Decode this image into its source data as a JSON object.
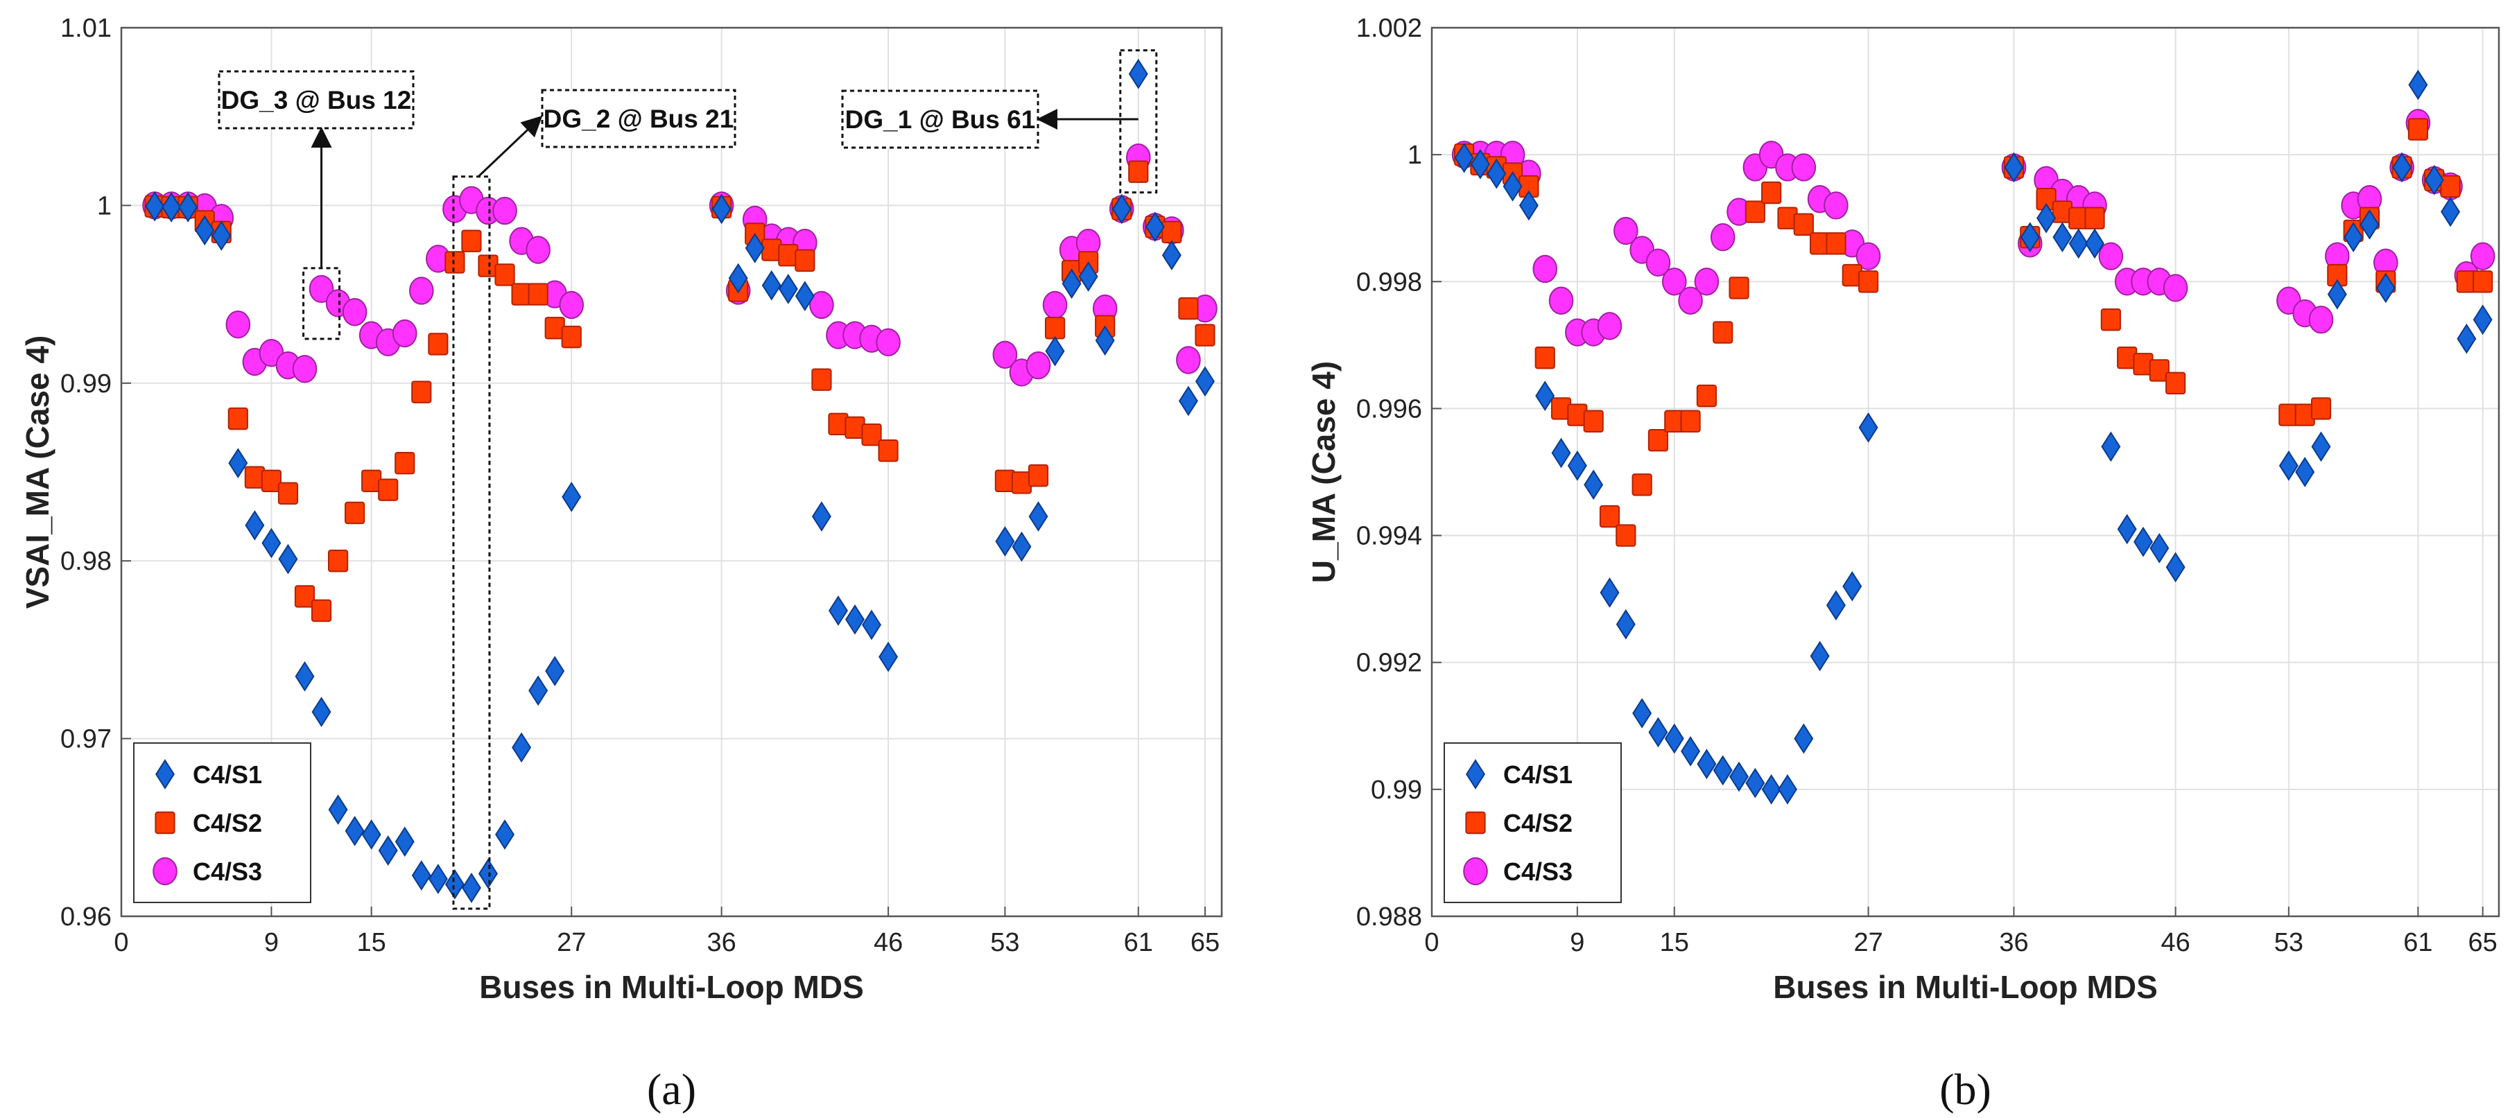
{
  "colors": {
    "S1": "#1565d8",
    "S1_edge": "#0b3a8c",
    "S2": "#ff3d00",
    "S2_edge": "#b32000",
    "S3": "#ff33ff",
    "S3_edge": "#a020a0",
    "grid": "#e0e0e0",
    "axis": "#555555"
  },
  "chart_data": [
    {
      "type": "scatter",
      "panel_label": "(a)",
      "xlabel": "Buses in Multi-Loop MDS",
      "ylabel": "VSAI_MA (Case 4)",
      "xlim": [
        0,
        66
      ],
      "ylim": [
        0.96,
        1.01
      ],
      "xticks": [
        0,
        9,
        15,
        27,
        36,
        46,
        53,
        61,
        65
      ],
      "yticks": [
        0.96,
        0.97,
        0.98,
        0.99,
        1,
        1.01
      ],
      "ytick_labels": [
        "0.96",
        "0.97",
        "0.98",
        "0.99",
        "1",
        "1.01"
      ],
      "legend": [
        "C4/S1",
        "C4/S2",
        "C4/S3"
      ],
      "legend_position": "bottom-left",
      "x": [
        2,
        3,
        4,
        5,
        6,
        7,
        8,
        9,
        10,
        11,
        12,
        13,
        14,
        15,
        16,
        17,
        18,
        19,
        20,
        21,
        22,
        23,
        24,
        25,
        26,
        27,
        36,
        37,
        38,
        39,
        40,
        41,
        42,
        43,
        44,
        45,
        46,
        53,
        54,
        55,
        56,
        57,
        58,
        59,
        60,
        61,
        62,
        63,
        64,
        65
      ],
      "series": [
        {
          "name": "C4/S1",
          "values": [
            0.99995,
            0.9999,
            0.9999,
            0.9986,
            0.9983,
            0.9855,
            0.982,
            0.981,
            0.9801,
            0.9735,
            0.9715,
            0.966,
            0.9648,
            0.9646,
            0.9637,
            0.9642,
            0.9623,
            0.9621,
            0.9618,
            0.9616,
            0.9624,
            0.9646,
            0.9695,
            0.9727,
            0.9738,
            0.9836,
            0.9998,
            0.9959,
            0.9976,
            0.9955,
            0.9953,
            0.9949,
            0.9825,
            0.9772,
            0.9767,
            0.9764,
            0.9746,
            0.9811,
            0.9808,
            0.9825,
            0.9918,
            0.9956,
            0.996,
            0.9924,
            0.9998,
            1.0074,
            0.9988,
            0.9972,
            0.989,
            0.9901
          ]
        },
        {
          "name": "C4/S2",
          "values": [
            0.99995,
            0.9999,
            0.9999,
            0.9991,
            0.9985,
            0.988,
            0.9847,
            0.9845,
            0.9838,
            0.978,
            0.9772,
            0.98,
            0.9827,
            0.9845,
            0.984,
            0.9855,
            0.9895,
            0.9922,
            0.9968,
            0.998,
            0.9966,
            0.9961,
            0.995,
            0.995,
            0.9931,
            0.9926,
            0.9999,
            0.9952,
            0.9984,
            0.9975,
            0.9972,
            0.9969,
            0.9902,
            0.9877,
            0.9875,
            0.9871,
            0.9862,
            0.9845,
            0.9844,
            0.9848,
            0.9931,
            0.9963,
            0.9968,
            0.9932,
            0.9998,
            1.0019,
            0.9988,
            0.9985,
            0.9942,
            0.9927
          ]
        },
        {
          "name": "C4/S3",
          "values": [
            1,
            1,
            1,
            0.9999,
            0.9993,
            0.9933,
            0.9912,
            0.9917,
            0.991,
            0.9908,
            0.9953,
            0.9945,
            0.994,
            0.9927,
            0.9923,
            0.9928,
            0.9952,
            0.997,
            0.9998,
            1.0003,
            0.9997,
            0.9997,
            0.998,
            0.9975,
            0.995,
            0.9944,
            1,
            0.9952,
            0.9992,
            0.9982,
            0.998,
            0.9979,
            0.9944,
            0.9927,
            0.9927,
            0.9925,
            0.9923,
            0.9916,
            0.9906,
            0.991,
            0.9944,
            0.9975,
            0.9979,
            0.9942,
            0.9998,
            1.0027,
            0.9988,
            0.9986,
            0.9913,
            0.9942
          ]
        }
      ],
      "annotations": [
        {
          "label": "DG_3 @ Bus 12",
          "bus": 12
        },
        {
          "label": "DG_2 @ Bus 21",
          "bus": 21
        },
        {
          "label": "DG_1 @ Bus 61",
          "bus": 61
        }
      ]
    },
    {
      "type": "scatter",
      "panel_label": "(b)",
      "xlabel": "Buses in Multi-Loop MDS",
      "ylabel": "U_MA (Case 4)",
      "xlim": [
        0,
        66
      ],
      "ylim": [
        0.988,
        1.002
      ],
      "xticks": [
        0,
        9,
        15,
        27,
        36,
        46,
        53,
        61,
        65
      ],
      "yticks": [
        0.988,
        0.99,
        0.992,
        0.994,
        0.996,
        0.998,
        1,
        1.002
      ],
      "ytick_labels": [
        "0.988",
        "0.99",
        "0.992",
        "0.994",
        "0.996",
        "0.998",
        "1",
        "1.002"
      ],
      "legend": [
        "C4/S1",
        "C4/S2",
        "C4/S3"
      ],
      "legend_position": "bottom-left",
      "x": [
        2,
        3,
        4,
        5,
        6,
        7,
        8,
        9,
        10,
        11,
        12,
        13,
        14,
        15,
        16,
        17,
        18,
        19,
        20,
        21,
        22,
        23,
        24,
        25,
        26,
        27,
        36,
        37,
        38,
        39,
        40,
        41,
        42,
        43,
        44,
        45,
        46,
        53,
        54,
        55,
        56,
        57,
        58,
        59,
        60,
        61,
        62,
        63,
        64,
        65
      ],
      "series": [
        {
          "name": "C4/S1",
          "values": [
            0.99995,
            0.99985,
            0.9997,
            0.9995,
            0.9992,
            0.9962,
            0.9953,
            0.9951,
            0.9948,
            0.9931,
            0.9926,
            0.9912,
            0.9909,
            0.9908,
            0.9906,
            0.9904,
            0.9903,
            0.9902,
            0.9901,
            0.99,
            0.99,
            0.9908,
            0.9921,
            0.9929,
            0.9932,
            0.9957,
            0.9998,
            0.9987,
            0.999,
            0.9987,
            0.9986,
            0.9986,
            0.9954,
            0.9941,
            0.9939,
            0.9938,
            0.9935,
            0.9951,
            0.995,
            0.9954,
            0.9978,
            0.9987,
            0.9989,
            0.9979,
            0.9998,
            1.0011,
            0.9996,
            0.9991,
            0.9971,
            0.9974
          ]
        },
        {
          "name": "C4/S2",
          "values": [
            1,
            0.99985,
            0.9998,
            0.9997,
            0.9995,
            0.9968,
            0.996,
            0.9959,
            0.9958,
            0.9943,
            0.994,
            0.9948,
            0.9955,
            0.9958,
            0.9958,
            0.9962,
            0.9972,
            0.9979,
            0.9991,
            0.9994,
            0.999,
            0.9989,
            0.9986,
            0.9986,
            0.9981,
            0.998,
            0.9998,
            0.9987,
            0.9993,
            0.9991,
            0.999,
            0.999,
            0.9974,
            0.9968,
            0.9967,
            0.9966,
            0.9964,
            0.9959,
            0.9959,
            0.996,
            0.9981,
            0.9988,
            0.999,
            0.998,
            0.9998,
            1.0004,
            0.9996,
            0.9995,
            0.998,
            0.998
          ]
        },
        {
          "name": "C4/S3",
          "values": [
            1,
            1,
            1,
            1,
            0.9997,
            0.9982,
            0.9977,
            0.9972,
            0.9972,
            0.9973,
            0.9988,
            0.9985,
            0.9983,
            0.998,
            0.9977,
            0.998,
            0.9987,
            0.9991,
            0.9998,
            1,
            0.9998,
            0.9998,
            0.9993,
            0.9992,
            0.9986,
            0.9984,
            0.9998,
            0.9986,
            0.9996,
            0.9994,
            0.9993,
            0.9992,
            0.9984,
            0.998,
            0.998,
            0.998,
            0.9979,
            0.9977,
            0.9975,
            0.9974,
            0.9984,
            0.9992,
            0.9993,
            0.9983,
            0.9998,
            1.0005,
            0.9996,
            0.9995,
            0.9981,
            0.9984
          ]
        }
      ]
    }
  ]
}
